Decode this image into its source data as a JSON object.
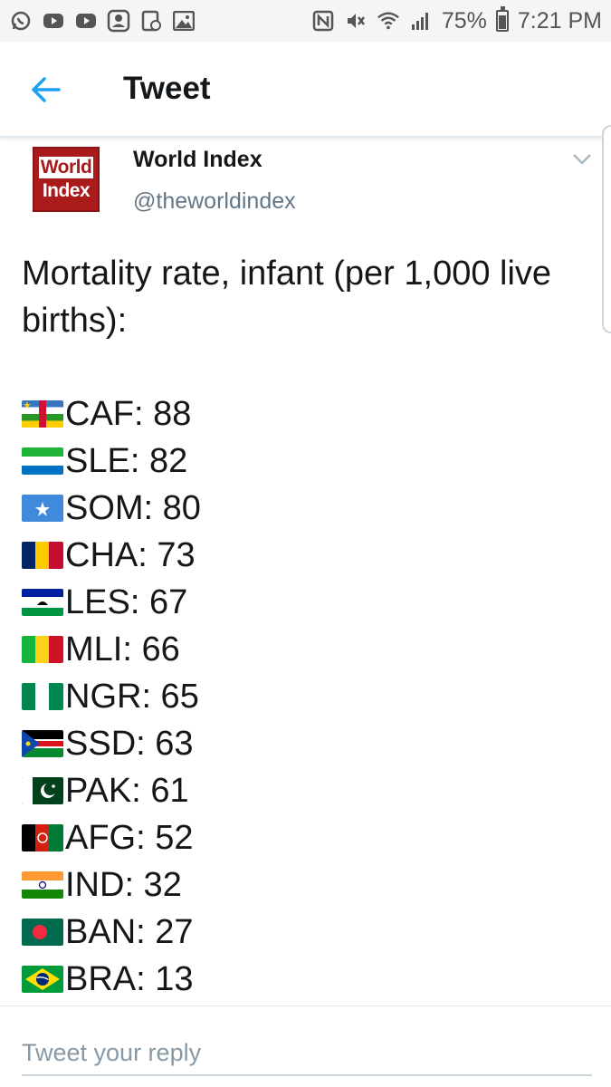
{
  "status_bar": {
    "battery_text": "75%",
    "time": "7:21 PM",
    "battery_level": 0.75,
    "left_icons": [
      "whatsapp-icon",
      "youtube-icon",
      "youtube-icon",
      "contacts-icon",
      "app-icon",
      "gallery-icon"
    ],
    "right_icons": [
      "nfc-icon",
      "mute-icon",
      "wifi-icon",
      "signal-icon",
      "battery-icon"
    ]
  },
  "header": {
    "title": "Tweet",
    "back_icon": "back-arrow-icon"
  },
  "tweet": {
    "avatar": {
      "line1": "World",
      "line2": "Index",
      "color": "#a91b1b"
    },
    "display_name": "World Index",
    "handle": "@theworldindex",
    "text": "Mortality rate, infant (per 1,000 live births):",
    "entries": [
      {
        "flag": "CAF",
        "text": "CAF: 88"
      },
      {
        "flag": "SLE",
        "text": "SLE: 82"
      },
      {
        "flag": "SOM",
        "text": "SOM: 80"
      },
      {
        "flag": "CHA",
        "text": "CHA: 73"
      },
      {
        "flag": "LES",
        "text": "LES: 67"
      },
      {
        "flag": "MLI",
        "text": "MLI: 66"
      },
      {
        "flag": "NGR",
        "text": "NGR: 65"
      },
      {
        "flag": "SSD",
        "text": "SSD: 63"
      },
      {
        "flag": "PAK",
        "text": "PAK: 61"
      },
      {
        "flag": "AFG",
        "text": "AFG: 52"
      },
      {
        "flag": "IND",
        "text": "IND: 32"
      },
      {
        "flag": "BAN",
        "text": "BAN: 27"
      },
      {
        "flag": "BRA",
        "text": "BRA: 13"
      }
    ]
  },
  "reply": {
    "placeholder": "Tweet your reply"
  },
  "colors": {
    "accent": "#1da1f2",
    "text": "#14171a",
    "muted": "#657786"
  }
}
